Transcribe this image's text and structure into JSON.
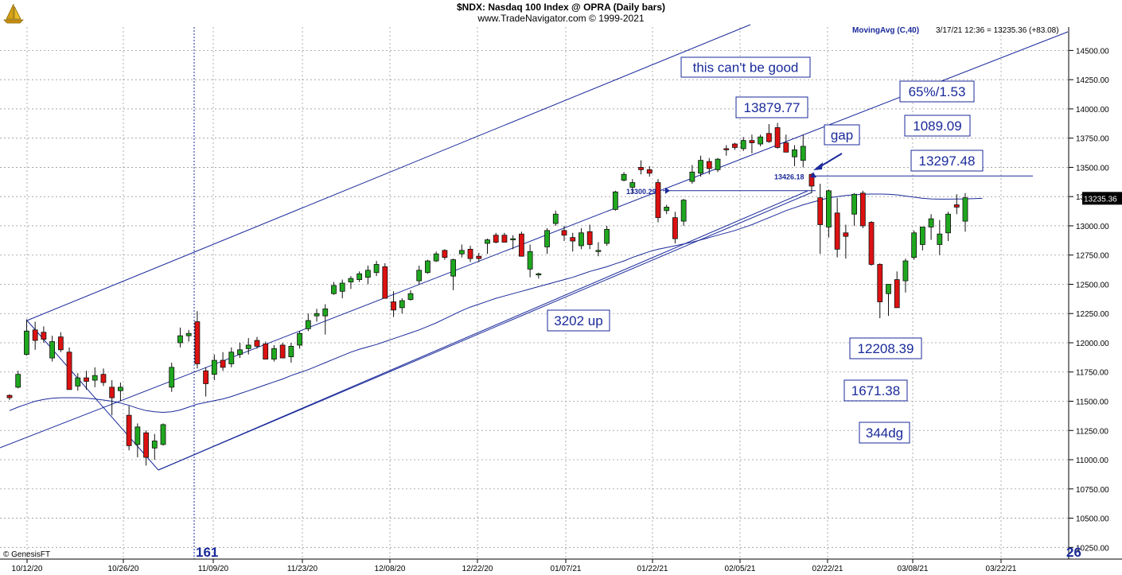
{
  "header": {
    "title": "$NDX:  Nasdaq 100 Index @ OPRA  (Daily bars)",
    "subtitle": "www.TradeNavigator.com © 1999-2021"
  },
  "chart_data": {
    "type": "candlestick",
    "ylim": [
      10150,
      14700
    ],
    "y_ticks": [
      "14500.00",
      "14250.00",
      "14000.00",
      "13750.00",
      "13500.00",
      "13250.00",
      "13000.00",
      "12750.00",
      "12500.00",
      "12250.00",
      "12000.00",
      "11750.00",
      "11500.00",
      "11250.00",
      "11000.00",
      "10750.00",
      "10500.00",
      "10250.00"
    ],
    "x_ticks": [
      "10/12/20",
      "10/26/20",
      "11/09/20",
      "11/23/20",
      "12/08/20",
      "12/22/20",
      "01/07/21",
      "01/22/21",
      "02/05/21",
      "02/22/21",
      "03/08/21",
      "03/22/21"
    ],
    "moving_average_label": "MovingAvg (C,40)",
    "info_label": "3/17/21 12:36 = 13235.36 (+83.08)",
    "last_price_label": "13235.36",
    "copyright": "© GenesisFT",
    "cycle_labels": [
      "161",
      "26"
    ],
    "colors": {
      "up": "#1fa81f",
      "down": "#dd1111",
      "lines": "#1a2a9a",
      "annotation_text": "#1a2a9a",
      "label_bg": "#ffffff"
    },
    "annotations": [
      {
        "text": "this can't be good"
      },
      {
        "text": "13879.77"
      },
      {
        "text": "65%/1.53"
      },
      {
        "text": "1089.09"
      },
      {
        "text": "gap"
      },
      {
        "text": "13297.48"
      },
      {
        "text": "3202 up"
      },
      {
        "text": "12208.39"
      },
      {
        "text": "1671.38"
      },
      {
        "text": "344dg"
      }
    ],
    "price_marks": [
      "13426.18",
      "13300.29"
    ],
    "candles": [
      [
        11550,
        11560,
        11510,
        11530
      ],
      [
        11620,
        11760,
        11610,
        11730
      ],
      [
        11900,
        12200,
        11890,
        12100
      ],
      [
        12110,
        12180,
        11940,
        12020
      ],
      [
        12090,
        12140,
        12000,
        12030
      ],
      [
        11870,
        12060,
        11840,
        12010
      ],
      [
        12050,
        12090,
        11920,
        11940
      ],
      [
        11920,
        11960,
        11600,
        11600
      ],
      [
        11630,
        11740,
        11590,
        11700
      ],
      [
        11700,
        11760,
        11600,
        11670
      ],
      [
        11680,
        11790,
        11620,
        11720
      ],
      [
        11730,
        11780,
        11630,
        11660
      ],
      [
        11620,
        11680,
        11380,
        11530
      ],
      [
        11590,
        11660,
        11500,
        11620
      ],
      [
        11380,
        11460,
        11080,
        11120
      ],
      [
        11130,
        11310,
        11020,
        11280
      ],
      [
        11230,
        11250,
        10950,
        11020
      ],
      [
        11100,
        11220,
        11000,
        11160
      ],
      [
        11130,
        11310,
        11120,
        11300
      ],
      [
        11620,
        11830,
        11580,
        11790
      ],
      [
        12000,
        12130,
        11960,
        12060
      ],
      [
        12060,
        12110,
        12010,
        12080
      ],
      [
        12180,
        12270,
        11780,
        11820
      ],
      [
        11760,
        11790,
        11540,
        11650
      ],
      [
        11730,
        11900,
        11680,
        11850
      ],
      [
        11850,
        11920,
        11760,
        11790
      ],
      [
        11820,
        11960,
        11790,
        11920
      ],
      [
        11900,
        12000,
        11870,
        11940
      ],
      [
        11950,
        12040,
        11900,
        11980
      ],
      [
        12020,
        12050,
        11950,
        11970
      ],
      [
        11990,
        12010,
        11860,
        11860
      ],
      [
        11860,
        11980,
        11840,
        11950
      ],
      [
        11980,
        12000,
        11870,
        11870
      ],
      [
        11880,
        12000,
        11830,
        11970
      ],
      [
        11980,
        12100,
        11950,
        12080
      ],
      [
        12120,
        12250,
        12100,
        12190
      ],
      [
        12230,
        12290,
        12180,
        12250
      ],
      [
        12230,
        12330,
        12070,
        12290
      ],
      [
        12420,
        12520,
        12410,
        12490
      ],
      [
        12440,
        12540,
        12380,
        12510
      ],
      [
        12520,
        12570,
        12460,
        12550
      ],
      [
        12540,
        12610,
        12520,
        12590
      ],
      [
        12560,
        12660,
        12500,
        12620
      ],
      [
        12600,
        12700,
        12570,
        12670
      ],
      [
        12650,
        12680,
        12420,
        12380
      ],
      [
        12350,
        12440,
        12220,
        12280
      ],
      [
        12300,
        12380,
        12250,
        12360
      ],
      [
        12370,
        12450,
        12360,
        12420
      ],
      [
        12530,
        12660,
        12500,
        12620
      ],
      [
        12600,
        12710,
        12590,
        12700
      ],
      [
        12700,
        12780,
        12690,
        12760
      ],
      [
        12790,
        12800,
        12710,
        12730
      ],
      [
        12570,
        12720,
        12450,
        12710
      ],
      [
        12760,
        12840,
        12730,
        12790
      ],
      [
        12800,
        12830,
        12690,
        12720
      ],
      [
        12740,
        12770,
        12690,
        12720
      ],
      [
        12850,
        12890,
        12760,
        12880
      ],
      [
        12920,
        12940,
        12850,
        12860
      ],
      [
        12920,
        12940,
        12860,
        12860
      ],
      [
        12880,
        12920,
        12800,
        12890
      ],
      [
        12930,
        12950,
        12750,
        12740
      ],
      [
        12630,
        12840,
        12560,
        12780
      ],
      [
        12580,
        12600,
        12550,
        12590
      ],
      [
        12820,
        12980,
        12760,
        12960
      ],
      [
        13020,
        13130,
        13000,
        13100
      ],
      [
        12960,
        13000,
        12870,
        12920
      ],
      [
        12900,
        12940,
        12780,
        12870
      ],
      [
        12830,
        12980,
        12800,
        12940
      ],
      [
        12950,
        13010,
        12800,
        12840
      ],
      [
        12780,
        12860,
        12740,
        12790
      ],
      [
        12850,
        13000,
        12830,
        12970
      ],
      [
        13140,
        13300,
        13130,
        13290
      ],
      [
        13390,
        13460,
        13380,
        13440
      ],
      [
        13330,
        13400,
        13280,
        13370
      ],
      [
        13500,
        13560,
        13440,
        13480
      ],
      [
        13480,
        13510,
        13420,
        13450
      ],
      [
        13370,
        13400,
        13030,
        13070
      ],
      [
        13130,
        13180,
        13100,
        13160
      ],
      [
        13070,
        13120,
        12850,
        12890
      ],
      [
        13040,
        13230,
        13000,
        13220
      ],
      [
        13380,
        13520,
        13360,
        13460
      ],
      [
        13450,
        13600,
        13420,
        13560
      ],
      [
        13550,
        13580,
        13440,
        13490
      ],
      [
        13480,
        13580,
        13460,
        13570
      ],
      [
        13660,
        13690,
        13600,
        13650
      ],
      [
        13700,
        13710,
        13650,
        13670
      ],
      [
        13660,
        13760,
        13640,
        13730
      ],
      [
        13730,
        13780,
        13620,
        13710
      ],
      [
        13700,
        13780,
        13680,
        13760
      ],
      [
        13790,
        13870,
        13710,
        13720
      ],
      [
        13840,
        13880,
        13660,
        13670
      ],
      [
        13710,
        13780,
        13640,
        13630
      ],
      [
        13590,
        13690,
        13510,
        13650
      ],
      [
        13560,
        13780,
        13500,
        13680
      ],
      [
        13440,
        13450,
        13280,
        13340
      ],
      [
        13240,
        13360,
        12760,
        13010
      ],
      [
        12990,
        13310,
        12900,
        13300
      ],
      [
        13110,
        13240,
        12730,
        12800
      ],
      [
        12940,
        13010,
        12720,
        12910
      ],
      [
        13100,
        13280,
        13000,
        13270
      ],
      [
        13280,
        13300,
        12980,
        13000
      ],
      [
        13030,
        13040,
        12660,
        12670
      ],
      [
        12670,
        12680,
        12210,
        12350
      ],
      [
        12420,
        12500,
        12230,
        12500
      ],
      [
        12540,
        12610,
        12300,
        12300
      ],
      [
        12530,
        12720,
        12430,
        12700
      ],
      [
        12730,
        12960,
        12710,
        12940
      ],
      [
        12840,
        12980,
        12790,
        12990
      ],
      [
        12990,
        13100,
        12880,
        13060
      ],
      [
        12840,
        13050,
        12750,
        12930
      ],
      [
        12940,
        13120,
        12870,
        13100
      ],
      [
        13180,
        13270,
        13100,
        13160
      ],
      [
        13040,
        13280,
        12950,
        13240
      ]
    ],
    "ma40": [
      11420,
      11450,
      11475,
      11500,
      11515,
      11525,
      11530,
      11530,
      11530,
      11525,
      11520,
      11510,
      11500,
      11485,
      11465,
      11440,
      11420,
      11410,
      11405,
      11410,
      11425,
      11450,
      11475,
      11490,
      11505,
      11520,
      11540,
      11565,
      11590,
      11615,
      11640,
      11665,
      11690,
      11720,
      11745,
      11770,
      11800,
      11830,
      11860,
      11890,
      11920,
      11945,
      11965,
      11985,
      12010,
      12035,
      12060,
      12085,
      12110,
      12140,
      12170,
      12205,
      12240,
      12275,
      12305,
      12330,
      12355,
      12380,
      12400,
      12420,
      12440,
      12460,
      12480,
      12500,
      12520,
      12540,
      12560,
      12585,
      12610,
      12630,
      12650,
      12675,
      12700,
      12730,
      12755,
      12780,
      12800,
      12815,
      12830,
      12845,
      12860,
      12880,
      12900,
      12920,
      12940,
      12960,
      12985,
      13010,
      13040,
      13070,
      13100,
      13130,
      13155,
      13180,
      13200,
      13220,
      13240,
      13250,
      13260,
      13265,
      13270,
      13272,
      13272,
      13270,
      13265,
      13255,
      13245,
      13235,
      13230,
      13228,
      13228,
      13229,
      13230,
      13232,
      13235
    ]
  }
}
